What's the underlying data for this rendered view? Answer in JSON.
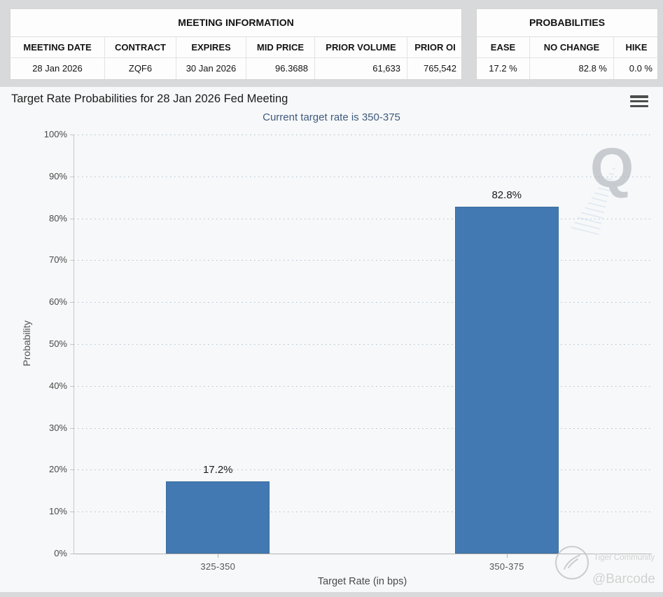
{
  "meeting_information": {
    "title": "MEETING INFORMATION",
    "columns": [
      "MEETING DATE",
      "CONTRACT",
      "EXPIRES",
      "MID PRICE",
      "PRIOR VOLUME",
      "PRIOR OI"
    ],
    "row": [
      "28 Jan 2026",
      "ZQF6",
      "30 Jan 2026",
      "96.3688",
      "61,633",
      "765,542"
    ]
  },
  "probabilities": {
    "title": "PROBABILITIES",
    "columns": [
      "EASE",
      "NO CHANGE",
      "HIKE"
    ],
    "row": [
      "17.2 %",
      "82.8 %",
      "0.0 %"
    ]
  },
  "chart_header": {
    "title": "Target Rate Probabilities for 28 Jan 2026 Fed Meeting",
    "subtitle": "Current target rate is 350-375",
    "menu_icon": "hamburger-menu"
  },
  "chart_data": {
    "type": "bar",
    "title": "Target Rate Probabilities for 28 Jan 2026 Fed Meeting",
    "subtitle": "Current target rate is 350-375",
    "categories": [
      "325-350",
      "350-375"
    ],
    "values": [
      17.2,
      82.8
    ],
    "bar_labels": [
      "17.2%",
      "82.8%"
    ],
    "xlabel": "Target Rate (in bps)",
    "ylabel": "Probability",
    "ylim": [
      0,
      100
    ],
    "yticks": [
      0,
      10,
      20,
      30,
      40,
      50,
      60,
      70,
      80,
      90,
      100
    ],
    "ytick_suffix": "%",
    "grid": "horizontal-dotted",
    "legend": "none",
    "bar_color": "#4379b2"
  },
  "watermarks": {
    "q_logo": "Q",
    "tiger_text": "Tiger Community",
    "handle": "@Barcode"
  },
  "colors": {
    "bar": "#4379b2",
    "subtitle_text": "#3f5a7d",
    "title_text": "#1c1c1c",
    "axis_text": "#4a4a4a",
    "grid_dot": "#96acc2",
    "page_background": "#d8d9da"
  }
}
